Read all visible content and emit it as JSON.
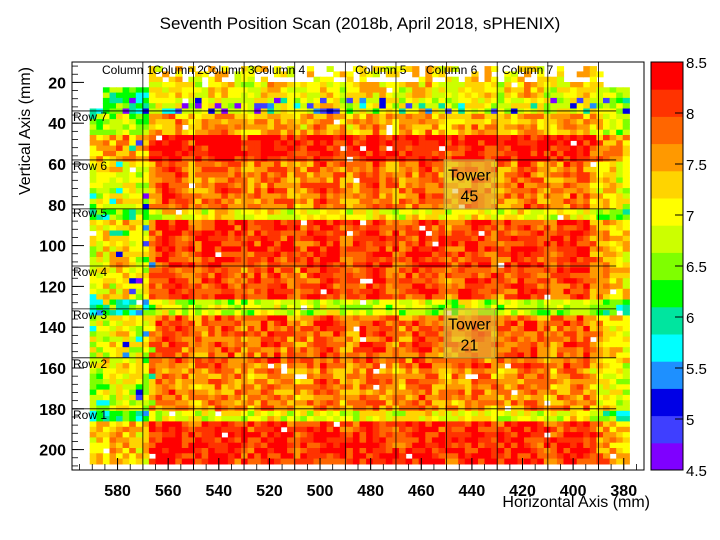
{
  "chart_data": {
    "type": "heatmap",
    "title": "Seventh Position Scan (2018b, April 2018, sPHENIX)",
    "xlabel": "Horizontal Axis (mm)",
    "ylabel": "Vertical Axis (mm)",
    "xlim": [
      598,
      372
    ],
    "ylim": [
      10,
      210
    ],
    "x_ticks": [
      "580",
      "560",
      "540",
      "520",
      "500",
      "480",
      "460",
      "440",
      "420",
      "400",
      "380"
    ],
    "y_ticks": [
      "20",
      "40",
      "60",
      "80",
      "100",
      "120",
      "140",
      "160",
      "180",
      "200"
    ],
    "zlim": [
      4.5,
      8.5
    ],
    "colorbar_ticks": [
      "4.5",
      "5",
      "5.5",
      "6",
      "6.5",
      "7",
      "7.5",
      "8",
      "8.5"
    ],
    "palette": [
      "#7f00ff",
      "#3f3fff",
      "#0000e6",
      "#1e90ff",
      "#00ffff",
      "#00e59f",
      "#00ff00",
      "#7fff00",
      "#ccff00",
      "#ffff00",
      "#ffd400",
      "#ff9900",
      "#ff6600",
      "#ff3300",
      "#ff0000"
    ],
    "column_labels": [
      "Column 1",
      "Column 2",
      "Column 3",
      "Column 4",
      "Column 5",
      "Column 6",
      "Column 7"
    ],
    "column_boundaries": [
      570,
      550,
      530,
      510,
      490,
      470,
      450,
      430,
      410,
      390
    ],
    "row_labels": [
      "Row 7",
      "Row 6",
      "Row 5",
      "Row 4",
      "Row 3",
      "Row 2",
      "Row 1"
    ],
    "row_boundaries": [
      34,
      58,
      82,
      110,
      131,
      155,
      180
    ],
    "towers": [
      {
        "label_line1": "Tower",
        "label_line2": "45",
        "x_range": [
          451,
          431
        ],
        "y_range": [
          58,
          82
        ]
      },
      {
        "label_line1": "Tower",
        "label_line2": "21",
        "x_range": [
          451,
          431
        ],
        "y_range": [
          131,
          155
        ]
      }
    ],
    "grid": false,
    "colorbar": "right"
  }
}
